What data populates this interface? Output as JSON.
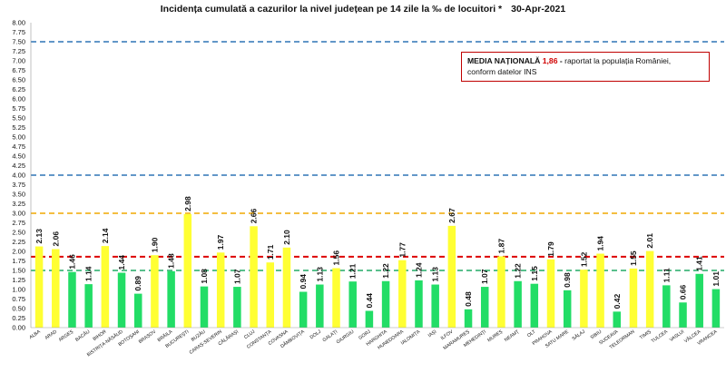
{
  "colors": {
    "above_average": "#ffff33",
    "below_average": "#22dd66",
    "line_red": "#dd0000",
    "line_orange": "#f0a800",
    "line_blue": "#2e75b6",
    "line_green": "#22aa66",
    "note_value": "#d00000"
  },
  "note": {
    "label": "MEDIA NAȚIONALĂ",
    "value": "1,86",
    "dash": " - ",
    "text_line1": "raportat la populația României,",
    "text_line2": "conform datelor INS"
  },
  "chart_data": {
    "type": "bar",
    "title": "Incidența cumulată a cazurilor la nivel județean pe 14 zile la ‰ de locuitori *",
    "date": "30-Apr-2021",
    "xlabel": "",
    "ylabel": "",
    "ylim": [
      0,
      8
    ],
    "ytick_step": 0.25,
    "yticks": [
      "0.00",
      "0.25",
      "0.50",
      "0.75",
      "1.00",
      "1.25",
      "1.50",
      "1.75",
      "2.00",
      "2.25",
      "2.50",
      "2.75",
      "3.00",
      "3.25",
      "3.50",
      "3.75",
      "4.00",
      "4.25",
      "4.50",
      "4.75",
      "5.00",
      "5.25",
      "5.50",
      "5.75",
      "6.00",
      "6.25",
      "6.50",
      "6.75",
      "7.00",
      "7.25",
      "7.50",
      "7.75",
      "8.00"
    ],
    "categories": [
      "ALBA",
      "ARAD",
      "ARGEȘ",
      "BACĂU",
      "BIHOR",
      "BISTRIȚA-NĂSĂUD",
      "BOTOȘANI",
      "BRAȘOV",
      "BRĂILA",
      "BUCUREȘTI",
      "BUZĂU",
      "CARAȘ-SEVERIN",
      "CĂLĂRAȘI",
      "CLUJ",
      "CONSTANȚA",
      "COVASNA",
      "DÂMBOVIȚA",
      "DOLJ",
      "GALAȚI",
      "GIURGIU",
      "GORJ",
      "HARGHITA",
      "HUNEDOARA",
      "IALOMIȚA",
      "IAȘI",
      "ILFOV",
      "MARAMUREȘ",
      "MEHEDINȚI",
      "MUREȘ",
      "NEAMȚ",
      "OLT",
      "PRAHOVA",
      "SATU MARE",
      "SĂLAJ",
      "SIBIU",
      "SUCEAVA",
      "TELEORMAN",
      "TIMIȘ",
      "TULCEA",
      "VASLUI",
      "VÂLCEA",
      "VRANCEA"
    ],
    "values": [
      2.13,
      2.06,
      1.46,
      1.14,
      2.14,
      1.44,
      0.89,
      1.9,
      1.48,
      2.98,
      1.08,
      1.97,
      1.07,
      2.66,
      1.71,
      2.1,
      0.94,
      1.13,
      1.56,
      1.21,
      0.44,
      1.22,
      1.77,
      1.24,
      1.13,
      2.67,
      0.48,
      1.07,
      1.87,
      1.22,
      1.15,
      1.79,
      0.98,
      1.52,
      1.94,
      0.42,
      1.55,
      2.01,
      1.11,
      0.66,
      1.41,
      1.01
    ],
    "value_labels": [
      "2.13",
      "2.06",
      "1.46",
      "1.14",
      "2.14",
      "1.44",
      "0.89",
      "1.90",
      "1.48",
      "2.98",
      "1.08",
      "1.97",
      "1.07",
      "2.66",
      "1.71",
      "2.10",
      "0.94",
      "1.13",
      "1.56",
      "1.21",
      "0.44",
      "1.22",
      "1.77",
      "1.24",
      "1.13",
      "2.67",
      "0.48",
      "1.07",
      "1.87",
      "1.22",
      "1.15",
      "1.79",
      "0.98",
      "1.52",
      "1.94",
      "0.42",
      "1.55",
      "2.01",
      "1.11",
      "0.66",
      "1.41",
      "1.01"
    ],
    "bar_colors": [
      "yellow",
      "yellow",
      "green",
      "green",
      "yellow",
      "green",
      "green",
      "yellow",
      "green",
      "yellow",
      "green",
      "yellow",
      "green",
      "yellow",
      "yellow",
      "yellow",
      "green",
      "green",
      "yellow",
      "green",
      "green",
      "green",
      "yellow",
      "green",
      "green",
      "yellow",
      "green",
      "green",
      "yellow",
      "green",
      "green",
      "yellow",
      "green",
      "yellow",
      "yellow",
      "green",
      "yellow",
      "yellow",
      "green",
      "green",
      "green",
      "green"
    ],
    "reference_lines": [
      {
        "name": "threshold-7.5",
        "value": 7.5,
        "color": "blue"
      },
      {
        "name": "threshold-4",
        "value": 4.0,
        "color": "blue"
      },
      {
        "name": "threshold-3",
        "value": 3.0,
        "color": "orange"
      },
      {
        "name": "national-average",
        "value": 1.86,
        "color": "red"
      },
      {
        "name": "threshold-1.5",
        "value": 1.5,
        "color": "green"
      }
    ],
    "grid": false,
    "legend": "none"
  }
}
